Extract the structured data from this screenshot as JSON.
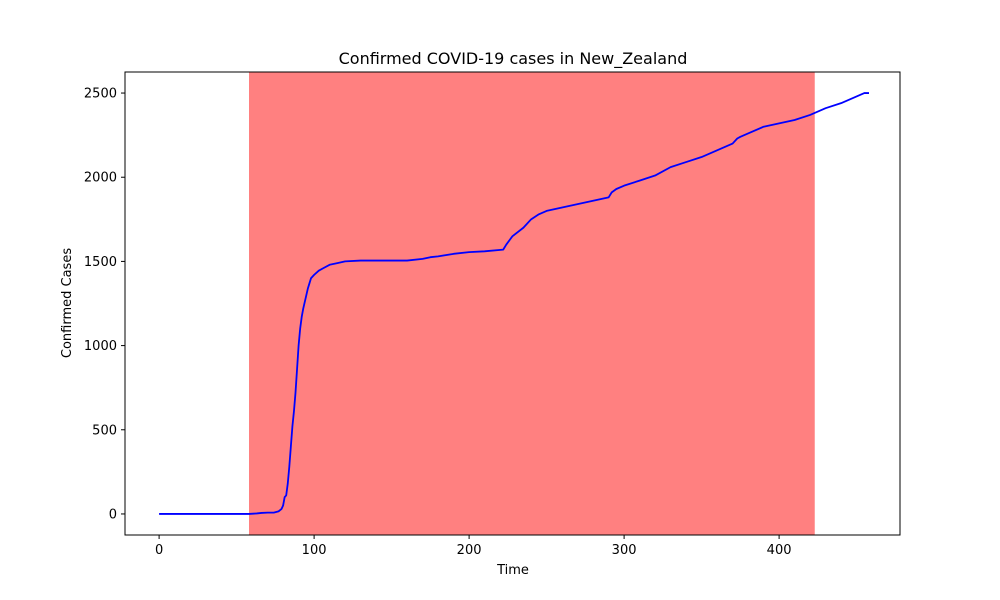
{
  "chart_data": {
    "type": "line",
    "title": "Confirmed COVID-19 cases in New_Zealand",
    "xlabel": "Time",
    "ylabel": "Confirmed Cases",
    "xlim": [
      -22,
      478
    ],
    "ylim": [
      -125,
      2625
    ],
    "xticks": [
      0,
      100,
      200,
      300,
      400
    ],
    "yticks": [
      0,
      500,
      1000,
      1500,
      2000,
      2500
    ],
    "grid": false,
    "shaded_region": {
      "x_start": 58,
      "x_end": 423,
      "color": "#ff8080"
    },
    "series": [
      {
        "color": "#0000ff",
        "x": [
          0,
          10,
          20,
          30,
          40,
          50,
          58,
          63,
          66,
          70,
          74,
          77,
          79,
          80,
          81,
          82,
          83,
          84,
          85,
          86,
          87,
          88,
          89,
          90,
          91,
          92,
          93,
          94,
          95,
          96,
          97,
          98,
          100,
          103,
          106,
          110,
          115,
          120,
          130,
          140,
          150,
          160,
          170,
          175,
          180,
          190,
          200,
          210,
          222,
          224,
          228,
          235,
          240,
          245,
          250,
          260,
          270,
          280,
          290,
          292,
          295,
          300,
          310,
          320,
          330,
          340,
          350,
          360,
          365,
          370,
          373,
          375,
          380,
          390,
          400,
          410,
          420,
          430,
          440,
          450,
          455,
          458
        ],
        "y": [
          0,
          0,
          0,
          0,
          0,
          0,
          0,
          3,
          6,
          8,
          8,
          15,
          30,
          50,
          100,
          110,
          180,
          280,
          400,
          520,
          610,
          720,
          860,
          1000,
          1100,
          1170,
          1220,
          1260,
          1300,
          1340,
          1370,
          1400,
          1420,
          1445,
          1460,
          1480,
          1490,
          1500,
          1505,
          1505,
          1505,
          1505,
          1515,
          1525,
          1530,
          1545,
          1555,
          1560,
          1570,
          1600,
          1650,
          1700,
          1750,
          1780,
          1800,
          1820,
          1840,
          1860,
          1880,
          1910,
          1930,
          1950,
          1980,
          2010,
          2060,
          2090,
          2120,
          2160,
          2180,
          2200,
          2230,
          2240,
          2260,
          2300,
          2320,
          2340,
          2370,
          2410,
          2440,
          2480,
          2500,
          2500
        ]
      }
    ]
  }
}
